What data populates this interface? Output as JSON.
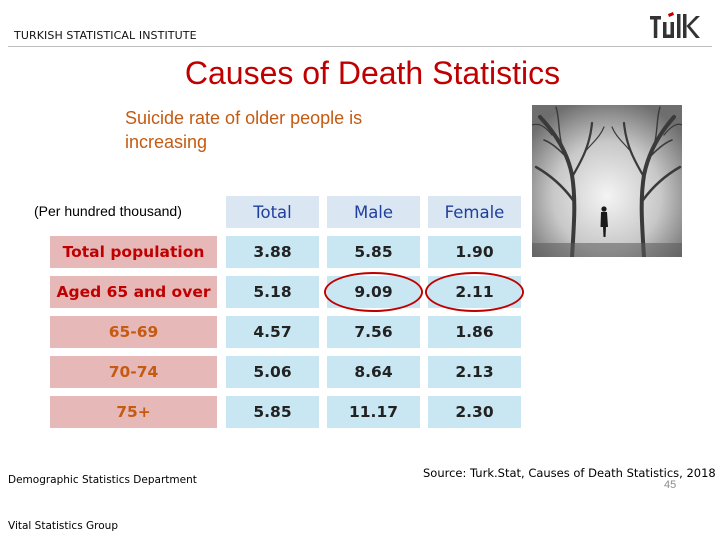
{
  "header": {
    "organization": "TURKISH STATISTICAL INSTITUTE",
    "logo_text": "TUIK"
  },
  "title": "Causes of Death Statistics",
  "subtitle": "Suicide rate of older people is increasing",
  "unit_note": "(Per hundred thousand)",
  "table": {
    "columns": [
      "Total",
      "Male",
      "Female"
    ],
    "rows": [
      {
        "label": "Total population",
        "style": "main",
        "values": [
          "3.88",
          "5.85",
          "1.90"
        ]
      },
      {
        "label": "Aged 65 and over",
        "style": "main",
        "values": [
          "5.18",
          "9.09",
          "2.11"
        ]
      },
      {
        "label": "65-69",
        "style": "age",
        "values": [
          "4.57",
          "7.56",
          "1.86"
        ]
      },
      {
        "label": "70-74",
        "style": "age",
        "values": [
          "5.06",
          "8.64",
          "2.13"
        ]
      },
      {
        "label": "75+",
        "style": "age",
        "values": [
          "5.85",
          "11.17",
          "2.30"
        ]
      }
    ],
    "highlighted": [
      "Aged 65 and over / Male",
      "Aged 65 and over / Female"
    ]
  },
  "source": "Source: Turk.Stat, Causes of Death Statistics, 2018",
  "footer": {
    "department": "Demographic Statistics Department",
    "group": "Vital Statistics Group",
    "page_number": "45"
  },
  "colors": {
    "title": "#c00000",
    "subtitle": "#c55a11",
    "header_cell": "#dae6f2",
    "label_cell": "#e6b8b8",
    "value_cell": "#c9e7f3",
    "highlight_ring": "#c00000"
  },
  "image": {
    "description_icon": "foggy-forest-person-photo"
  }
}
